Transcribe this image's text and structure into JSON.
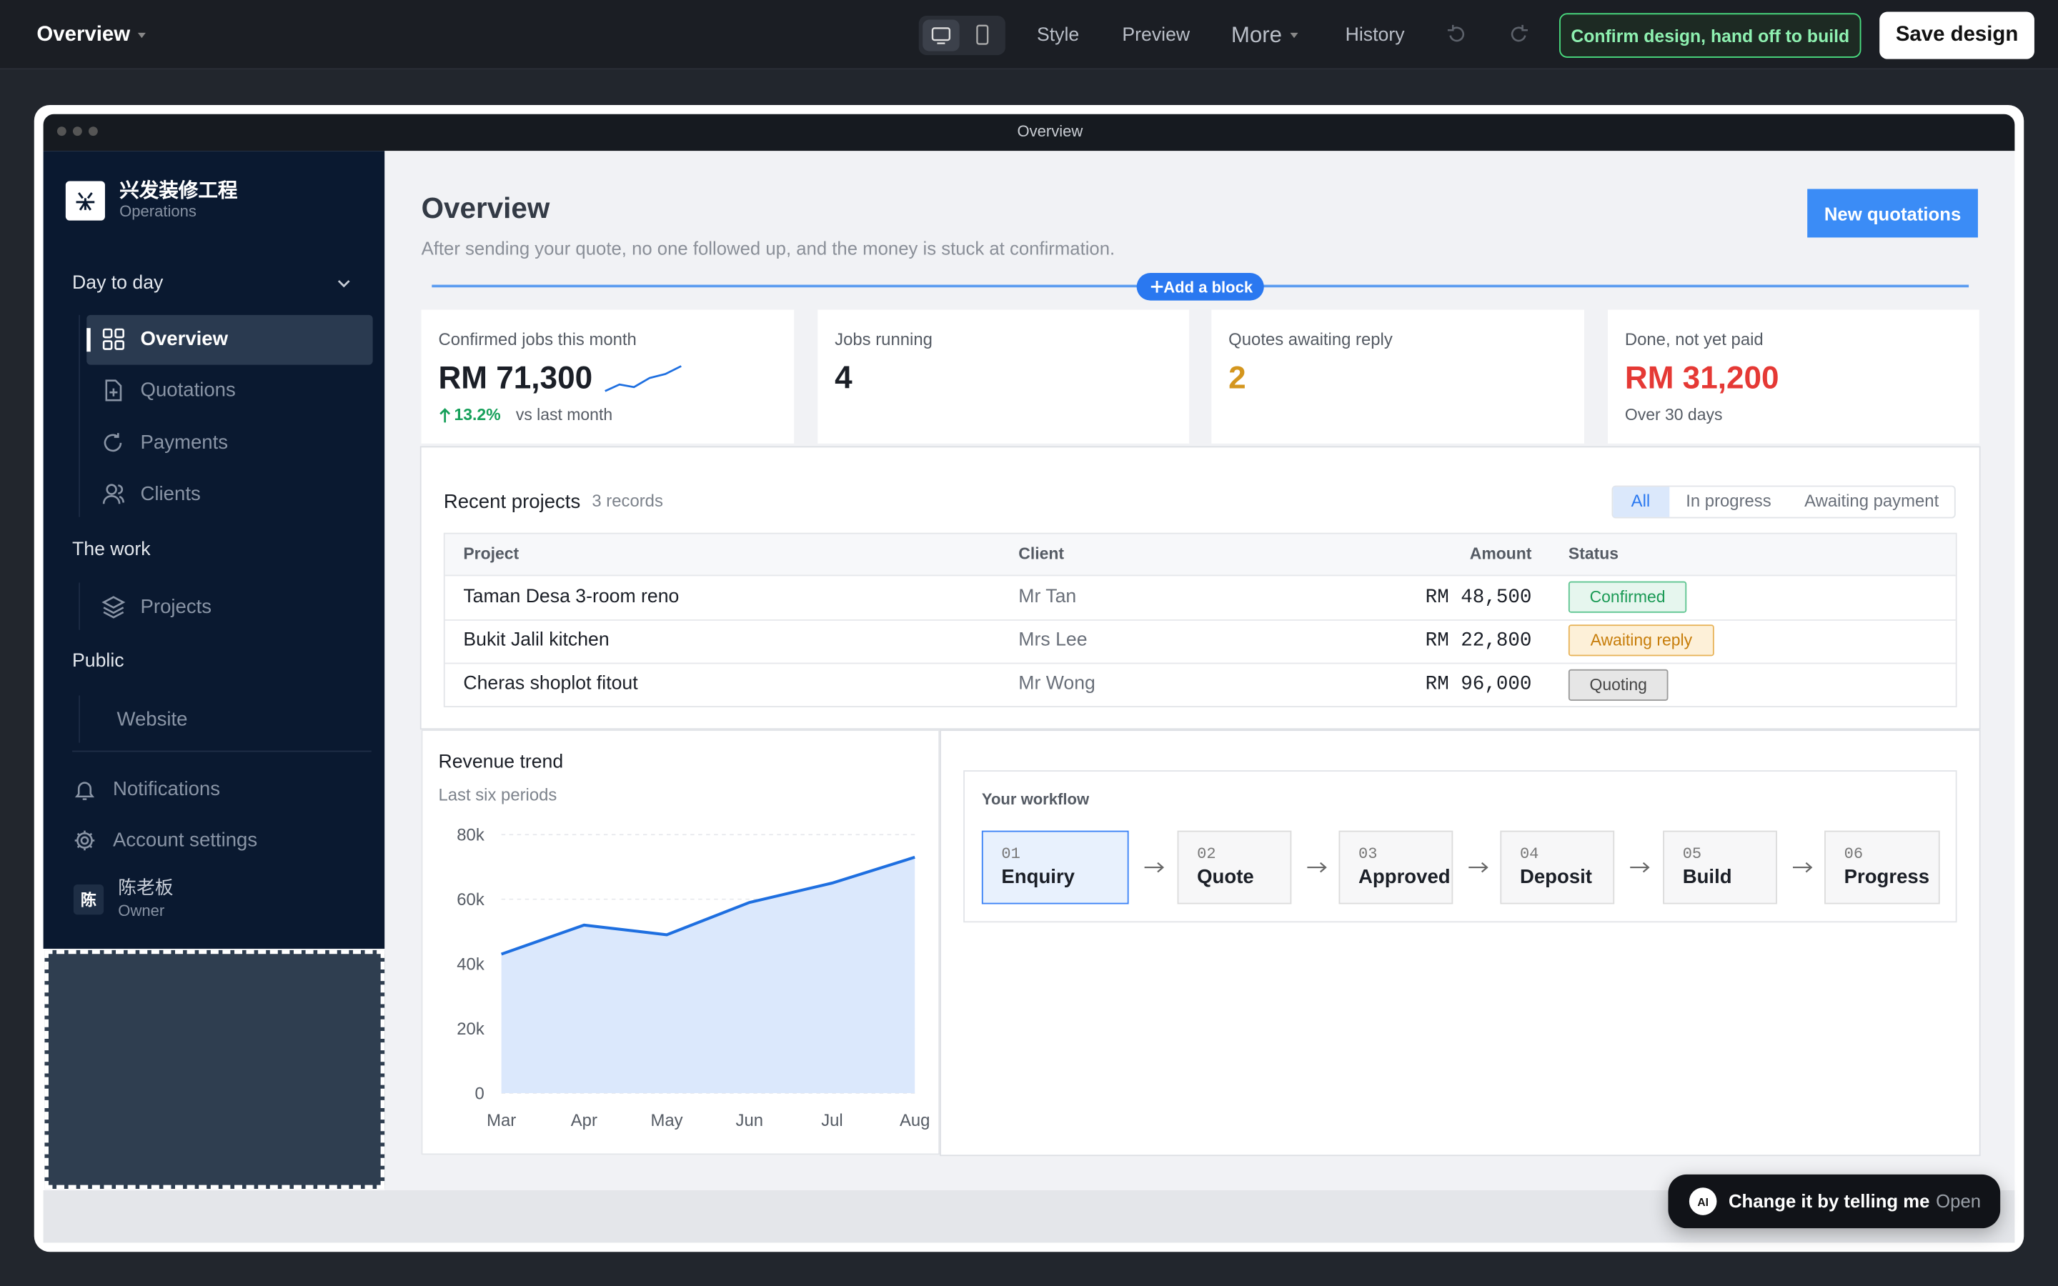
{
  "topbar": {
    "title": "Overview",
    "menu": [
      "Style",
      "Preview",
      "More",
      "History"
    ],
    "confirm": "Confirm design, hand off to build",
    "save": "Save design"
  },
  "window": {
    "title": "Overview"
  },
  "sidebar": {
    "brand": {
      "name": "兴发装修工程",
      "sub": "Operations"
    },
    "groups": [
      {
        "label": "Day to day",
        "items": [
          "Overview",
          "Quotations",
          "Payments",
          "Clients"
        ]
      },
      {
        "label": "The work",
        "items": [
          "Projects"
        ]
      },
      {
        "label": "Public",
        "items": [
          "Website"
        ]
      }
    ],
    "footer": [
      "Notifications",
      "Account settings"
    ],
    "user": {
      "initial": "陈",
      "name": "陈老板",
      "role": "Owner"
    }
  },
  "main": {
    "title": "Overview",
    "subtitle": "After sending your quote, no one followed up, and the money is stuck at confirmation.",
    "new_button": "New quotations",
    "add_block": "Add a block",
    "kpis": [
      {
        "label": "Confirmed jobs this month",
        "value": "RM 71,300",
        "change": "13.2%",
        "note": "vs last month"
      },
      {
        "label": "Jobs running",
        "value": "4"
      },
      {
        "label": "Quotes awaiting reply",
        "value": "2"
      },
      {
        "label": "Done, not yet paid",
        "value": "RM 31,200",
        "note": "Over 30 days"
      }
    ],
    "projects": {
      "title": "Recent projects",
      "count": "3 records",
      "filters": [
        "All",
        "In progress",
        "Awaiting payment"
      ],
      "columns": [
        "Project",
        "Client",
        "Amount",
        "Status"
      ],
      "rows": [
        [
          "Taman Desa 3-room reno",
          "Mr Tan",
          "RM 48,500",
          "Confirmed"
        ],
        [
          "Bukit Jalil kitchen",
          "Mrs Lee",
          "RM 22,800",
          "Awaiting reply"
        ],
        [
          "Cheras shoplot fitout",
          "Mr Wong",
          "RM 96,000",
          "Quoting"
        ]
      ]
    },
    "workflow": {
      "title": "Your workflow",
      "steps": [
        {
          "num": "01",
          "label": "Enquiry"
        },
        {
          "num": "02",
          "label": "Quote"
        },
        {
          "num": "03",
          "label": "Approved"
        },
        {
          "num": "04",
          "label": "Deposit"
        },
        {
          "num": "05",
          "label": "Build"
        },
        {
          "num": "06",
          "label": "Progress"
        }
      ]
    }
  },
  "assistant": {
    "badge": "AI",
    "text": "Change it by telling me",
    "action": "Open"
  },
  "chart_data": {
    "type": "area",
    "title": "Revenue trend",
    "subtitle": "Last six periods",
    "categories": [
      "Mar",
      "Apr",
      "May",
      "Jun",
      "Jul",
      "Aug"
    ],
    "values": [
      43000,
      52000,
      49000,
      59000,
      65000,
      73000
    ],
    "color": "#1e6fe0",
    "fill": "#dbe8fc",
    "ylim": [
      0,
      80000
    ],
    "yticks": [
      {
        "value": 0,
        "label": "0"
      },
      {
        "value": 20000,
        "label": "20k"
      },
      {
        "value": 40000,
        "label": "40k"
      },
      {
        "value": 60000,
        "label": "60k"
      },
      {
        "value": 80000,
        "label": "80k"
      }
    ],
    "grid": true
  }
}
